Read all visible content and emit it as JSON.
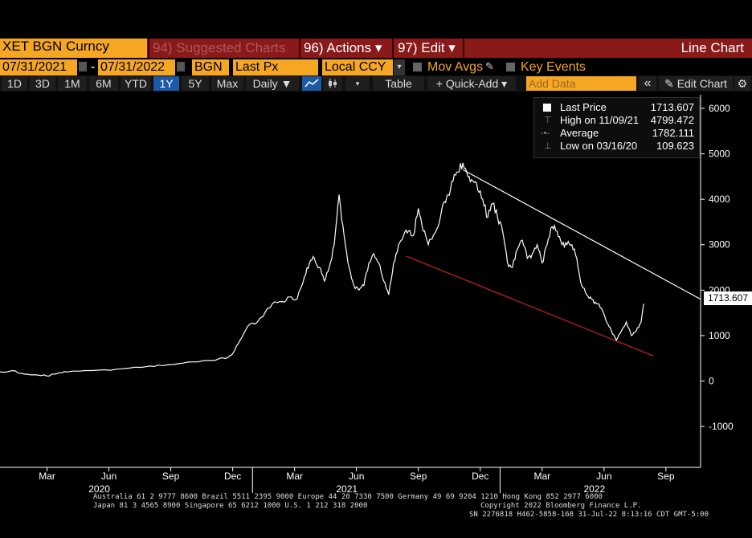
{
  "top_bar": {
    "ticker": "XET BGN Curncy",
    "suggested": "94) Suggested Charts",
    "actions": "96) Actions ▾",
    "edit": "97) Edit ▾",
    "chart_type": "Line Chart"
  },
  "controls": {
    "start_date": "07/31/2021",
    "dash": "-",
    "end_date": "07/31/2022",
    "source": "BGN",
    "field": "Last Px",
    "currency": "Local CCY",
    "mov_avgs": "Mov Avgs",
    "key_events": "Key Events"
  },
  "toolbar": {
    "periods": [
      "1D",
      "3D",
      "1M",
      "6M",
      "YTD",
      "1Y",
      "5Y",
      "Max"
    ],
    "active_period": "1Y",
    "frequency": "Daily ▼",
    "table": "Table",
    "quick_add": "+ Quick-Add ▾",
    "add_data_placeholder": "Add Data",
    "collapse": "«",
    "edit_chart": "Edit Chart"
  },
  "legend": {
    "last_price_label": "Last Price",
    "last_price_value": "1713.607",
    "high_label": "High on 11/09/21",
    "high_value": "4799.472",
    "average_label": "Average",
    "average_value": "1782.111",
    "low_label": "Low on 03/16/20",
    "low_value": "109.623"
  },
  "price_tag": "1713.607",
  "chart_data": {
    "type": "line",
    "title": "",
    "xlabel": "",
    "ylabel": "",
    "ylim": [
      -1900,
      6300
    ],
    "y_ticks": [
      6000,
      5000,
      4000,
      3000,
      2000,
      1000,
      0,
      -1000
    ],
    "x_month_ticks": [
      "Mar",
      "Jun",
      "Sep",
      "Dec",
      "Mar",
      "Jun",
      "Sep",
      "Dec",
      "Mar",
      "Jun",
      "Sep"
    ],
    "x_year_labels": [
      "2020",
      "2021",
      "2022"
    ],
    "x_month_positions": [
      2020.17,
      2020.42,
      2020.67,
      2020.92,
      2021.17,
      2021.42,
      2021.67,
      2021.92,
      2022.17,
      2022.42,
      2022.67
    ],
    "x_year_positions": [
      2020.42,
      2021.42,
      2022.42
    ],
    "xlim": [
      2019.98,
      2022.81
    ],
    "series": [
      {
        "name": "",
        "color": "#ffffff",
        "x": [
          2019.98,
          2020.03,
          2020.08,
          2020.12,
          2020.17,
          2020.21,
          2020.25,
          2020.35,
          2020.45,
          2020.55,
          2020.62,
          2020.7,
          2020.78,
          2020.82,
          2020.86,
          2020.9,
          2020.92,
          2020.95,
          2020.98,
          2021.02,
          2021.05,
          2021.08,
          2021.12,
          2021.15,
          2021.18,
          2021.21,
          2021.23,
          2021.25,
          2021.27,
          2021.29,
          2021.31,
          2021.33,
          2021.35,
          2021.37,
          2021.39,
          2021.41,
          2021.43,
          2021.45,
          2021.47,
          2021.49,
          2021.51,
          2021.53,
          2021.55,
          2021.57,
          2021.59,
          2021.61,
          2021.63,
          2021.65,
          2021.67,
          2021.69,
          2021.71,
          2021.73,
          2021.75,
          2021.77,
          2021.79,
          2021.81,
          2021.83,
          2021.85,
          2021.87,
          2021.89,
          2021.91,
          2021.93,
          2021.95,
          2021.97,
          2021.99,
          2022.01,
          2022.03,
          2022.05,
          2022.07,
          2022.09,
          2022.11,
          2022.13,
          2022.15,
          2022.17,
          2022.19,
          2022.21,
          2022.23,
          2022.25,
          2022.27,
          2022.29,
          2022.31,
          2022.33,
          2022.35,
          2022.37,
          2022.39,
          2022.41,
          2022.43,
          2022.45,
          2022.47,
          2022.49,
          2022.51,
          2022.53,
          2022.55,
          2022.57,
          2022.58
        ],
        "values": [
          200,
          230,
          150,
          140,
          110,
          160,
          200,
          230,
          260,
          300,
          350,
          380,
          420,
          450,
          480,
          520,
          600,
          900,
          1200,
          1300,
          1500,
          1700,
          1750,
          1850,
          1800,
          2300,
          2600,
          2700,
          2500,
          2200,
          2500,
          3000,
          4100,
          3200,
          2500,
          2100,
          2000,
          2100,
          2600,
          2800,
          2600,
          2200,
          1900,
          2600,
          3000,
          3200,
          3300,
          3200,
          3800,
          3300,
          3000,
          3200,
          3400,
          3900,
          4100,
          4400,
          4600,
          4800,
          4500,
          4400,
          4200,
          4000,
          3600,
          3900,
          3600,
          3300,
          2600,
          2500,
          2900,
          3100,
          2700,
          2800,
          3000,
          2600,
          3000,
          3400,
          3300,
          3000,
          3000,
          3000,
          2700,
          2100,
          1900,
          1800,
          1700,
          1600,
          1300,
          1100,
          900,
          1100,
          1300,
          1000,
          1100,
          1300,
          1700
        ]
      }
    ],
    "trendlines": [
      {
        "color": "#ffffff",
        "x": [
          2021.85,
          2022.81
        ],
        "y": [
          4650,
          1800
        ]
      },
      {
        "color": "#c0231f",
        "x": [
          2021.62,
          2022.62
        ],
        "y": [
          2750,
          550
        ]
      }
    ]
  },
  "footer": {
    "line1": "Australia 61 2 9777 8600 Brazil 5511 2395 9000 Europe 44 20 7330 7500 Germany 49 69 9204 1210 Hong Kong 852 2977 6000",
    "line2": "Japan 81 3 4565 8900      Singapore 65 6212 1000      U.S. 1 212 318 2000",
    "copyright": "Copyright 2022 Bloomberg Finance L.P.",
    "line3": "SN 2276818 H462-5858-168 31-Jul-22  8:13:16 CDT  GMT-5:00"
  }
}
